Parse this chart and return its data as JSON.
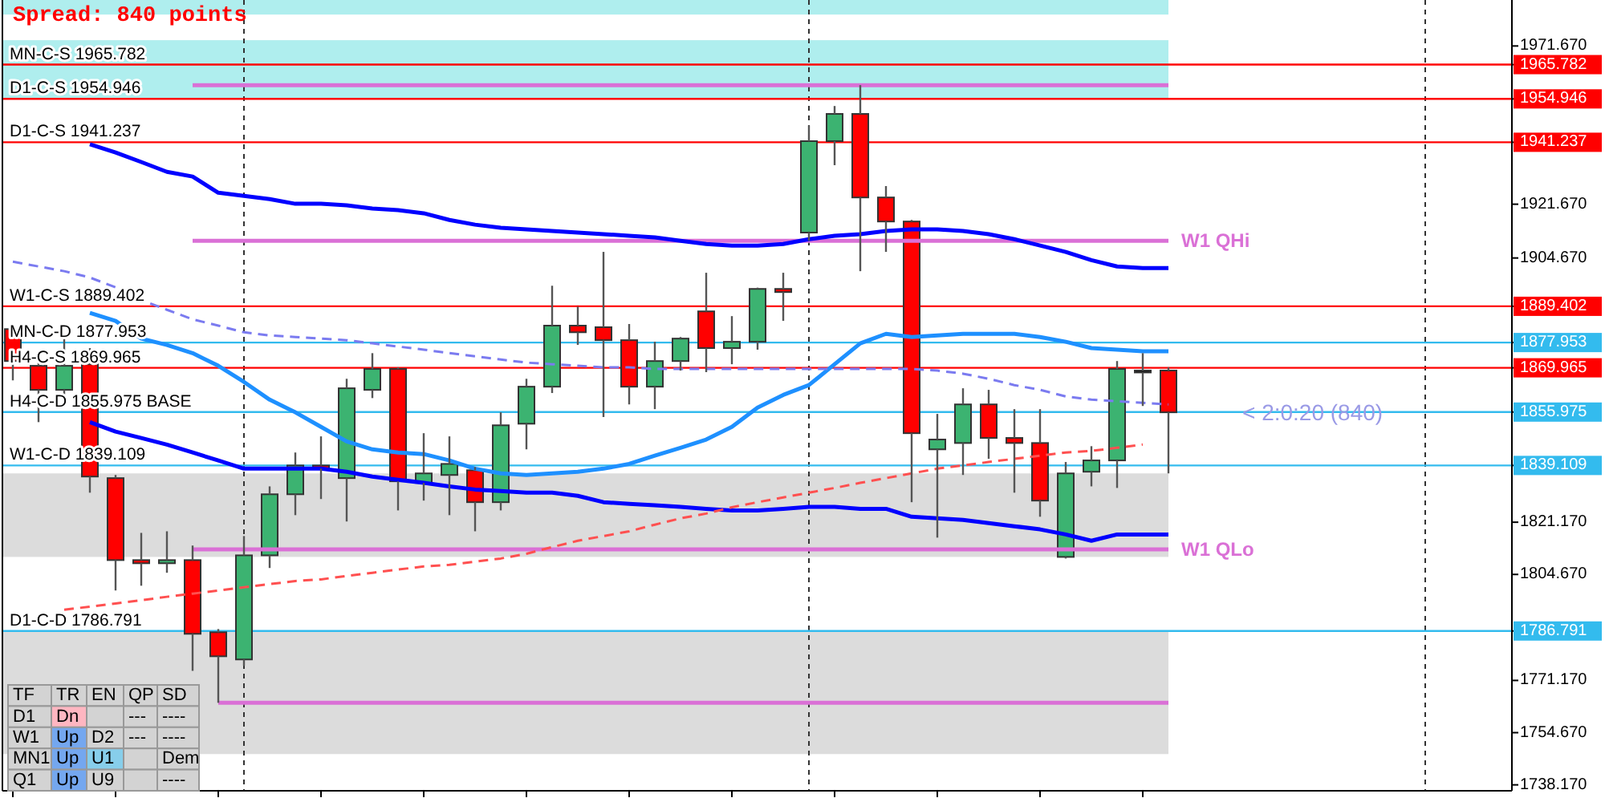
{
  "chart_data": [
    {
      "type": "candlestick",
      "categories": [
        null,
        null,
        null,
        null,
        null,
        null,
        null,
        null,
        null,
        null,
        null,
        null,
        null,
        null,
        null,
        null,
        null,
        null,
        null,
        null,
        null,
        null,
        null,
        null,
        null,
        null,
        null,
        null,
        null,
        null,
        null,
        null,
        null,
        null,
        null,
        null,
        null,
        null,
        null,
        null,
        null,
        null,
        null,
        null,
        null,
        null
      ],
      "ohlc": [
        [
          1882.2,
          1883.5,
          1866.0,
          1872.1
        ],
        [
          1870.6,
          1872.0,
          1852.8,
          1863.0
        ],
        [
          1863.0,
          1879.2,
          1861.5,
          1870.6
        ],
        [
          1871.1,
          1876.2,
          1830.5,
          1835.6
        ],
        [
          1835.1,
          1836.1,
          1799.6,
          1809.2
        ],
        [
          1809.2,
          1817.8,
          1801.1,
          1808.2
        ],
        [
          1808.2,
          1818.3,
          1805.2,
          1809.2
        ],
        [
          1809.2,
          1813.8,
          1774.2,
          1785.9
        ],
        [
          1786.4,
          1787.4,
          1764.1,
          1778.8
        ],
        [
          1777.8,
          1816.8,
          1775.8,
          1810.7
        ],
        [
          1810.7,
          1832.5,
          1806.7,
          1830.0
        ],
        [
          1830.0,
          1843.2,
          1823.4,
          1839.1
        ],
        [
          1839.1,
          1848.3,
          1828.5,
          1838.1
        ],
        [
          1835.1,
          1866.5,
          1821.4,
          1863.5
        ],
        [
          1863.0,
          1874.6,
          1860.4,
          1869.6
        ],
        [
          1869.6,
          1870.1,
          1824.9,
          1834.1
        ],
        [
          1833.6,
          1849.3,
          1828.0,
          1836.6
        ],
        [
          1836.1,
          1848.3,
          1823.4,
          1839.6
        ],
        [
          1837.6,
          1838.6,
          1818.3,
          1827.5
        ],
        [
          1827.5,
          1855.9,
          1824.9,
          1851.8
        ],
        [
          1852.3,
          1866.5,
          1844.2,
          1864.0
        ],
        [
          1864.0,
          1895.9,
          1862.0,
          1883.3
        ],
        [
          1883.3,
          1889.3,
          1877.2,
          1881.2
        ],
        [
          1882.8,
          1906.6,
          1854.4,
          1878.7
        ],
        [
          1878.7,
          1883.8,
          1858.4,
          1864.0
        ],
        [
          1864.0,
          1878.2,
          1856.9,
          1872.1
        ],
        [
          1872.1,
          1879.7,
          1869.1,
          1879.2
        ],
        [
          1887.8,
          1900.0,
          1868.6,
          1876.2
        ],
        [
          1876.2,
          1886.3,
          1871.1,
          1878.2
        ],
        [
          1878.2,
          1895.3,
          1875.7,
          1894.9
        ],
        [
          1894.9,
          1900.0,
          1884.8,
          1893.9
        ],
        [
          1912.7,
          1946.6,
          1910.1,
          1941.6
        ],
        [
          1941.6,
          1952.7,
          1934.0,
          1950.2
        ],
        [
          1950.2,
          1959.3,
          1900.5,
          1923.8
        ],
        [
          1923.8,
          1927.4,
          1906.6,
          1916.2
        ],
        [
          1916.2,
          1916.7,
          1827.5,
          1849.3
        ],
        [
          1844.2,
          1855.4,
          1816.3,
          1847.3
        ],
        [
          1846.2,
          1863.5,
          1836.1,
          1858.4
        ],
        [
          1858.4,
          1863.0,
          1841.2,
          1847.8
        ],
        [
          1847.8,
          1856.9,
          1830.5,
          1846.2
        ],
        [
          1846.2,
          1856.9,
          1822.9,
          1828.0
        ],
        [
          1810.2,
          1840.2,
          1809.7,
          1836.6
        ],
        [
          1837.1,
          1845.2,
          1832.5,
          1840.7
        ],
        [
          1840.7,
          1872.1,
          1832.0,
          1869.6
        ],
        [
          1869.1,
          1874.6,
          1857.9,
          1869.1
        ],
        [
          1869.1,
          1870.1,
          1836.6,
          1855.9
        ]
      ],
      "colors": [
        "#ff0000",
        "#ff0000",
        "#3cb371",
        "#ff0000",
        "#ff0000",
        "#ff0000",
        "#3cb371",
        "#ff0000",
        "#ff0000",
        "#3cb371",
        "#3cb371",
        "#3cb371",
        "#ff0000",
        "#3cb371",
        "#3cb371",
        "#ff0000",
        "#3cb371",
        "#3cb371",
        "#ff0000",
        "#3cb371",
        "#3cb371",
        "#3cb371",
        "#ff0000",
        "#ff0000",
        "#ff0000",
        "#3cb371",
        "#3cb371",
        "#ff0000",
        "#3cb371",
        "#3cb371",
        "#ff0000",
        "#3cb371",
        "#3cb371",
        "#ff0000",
        "#ff0000",
        "#ff0000",
        "#3cb371",
        "#3cb371",
        "#ff0000",
        "#ff0000",
        "#ff0000",
        "#3cb371",
        "#3cb371",
        "#3cb371",
        "#000000",
        "#ff0000"
      ],
      "series": [
        {
          "type": "line",
          "color": "#da70d6",
          "values": [
            null,
            null,
            null,
            null,
            null,
            null,
            null,
            1959.3,
            1959.3,
            1959.3,
            1959.3,
            1959.3,
            1959.3,
            1959.3,
            1959.3,
            1959.3,
            1959.3,
            1959.3,
            1959.3,
            1959.3,
            1959.3,
            1959.3,
            1959.3,
            1959.3,
            1959.3,
            1959.3,
            1959.3,
            1959.3,
            1959.3,
            1959.3,
            1959.3,
            1959.3,
            1959.3,
            1959.3,
            1959.3,
            1959.3,
            1959.3,
            1959.3,
            1959.3,
            1959.3,
            1959.3,
            1959.3,
            1959.3,
            1959.3,
            1959.3,
            1959.3
          ]
        },
        {
          "type": "line",
          "name": "W1 QHi",
          "color": "#da70d6",
          "values": [
            null,
            null,
            null,
            null,
            null,
            null,
            null,
            1910.1,
            1910.1,
            1910.1,
            1910.1,
            1910.1,
            1910.1,
            1910.1,
            1910.1,
            1910.1,
            1910.1,
            1910.1,
            1910.1,
            1910.1,
            1910.1,
            1910.1,
            1910.1,
            1910.1,
            1910.1,
            1910.1,
            1910.1,
            1910.1,
            1910.1,
            1910.1,
            1910.1,
            1910.1,
            1910.1,
            1910.1,
            1910.1,
            1910.1,
            1910.1,
            1910.1,
            1910.1,
            1910.1,
            1910.1,
            1910.1,
            1910.1,
            1910.1,
            1910.1,
            1910.1
          ]
        },
        {
          "type": "line",
          "name": "W1 QLo",
          "color": "#da70d6",
          "values": [
            null,
            null,
            null,
            null,
            null,
            null,
            null,
            1812.6,
            1812.6,
            1812.6,
            1812.6,
            1812.6,
            1812.6,
            1812.6,
            1812.6,
            1812.6,
            1812.6,
            1812.6,
            1812.6,
            1812.6,
            1812.6,
            1812.6,
            1812.6,
            1812.6,
            1812.6,
            1812.6,
            1812.6,
            1812.6,
            1812.6,
            1812.6,
            1812.6,
            1812.6,
            1812.6,
            1812.6,
            1812.6,
            1812.6,
            1812.6,
            1812.6,
            1812.6,
            1812.6,
            1812.6,
            1812.6,
            1812.6,
            1812.6,
            1812.6,
            1812.6
          ]
        },
        {
          "type": "line",
          "color": "#da70d6",
          "values": [
            null,
            null,
            null,
            null,
            null,
            null,
            null,
            null,
            1764.1,
            1764.1,
            1764.1,
            1764.1,
            1764.1,
            1764.1,
            1764.1,
            1764.1,
            1764.1,
            1764.1,
            1764.1,
            1764.1,
            1764.1,
            1764.1,
            1764.1,
            1764.1,
            1764.1,
            1764.1,
            1764.1,
            1764.1,
            1764.1,
            1764.1,
            1764.1,
            1764.1,
            1764.1,
            1764.1,
            1764.1,
            1764.1,
            1764.1,
            1764.1,
            1764.1,
            1764.1,
            1764.1,
            1764.1,
            1764.1,
            1764.1,
            1764.1,
            1764.1
          ]
        },
        {
          "type": "line",
          "color": "#0000ff",
          "values": [
            null,
            null,
            null,
            1940.6,
            1938.0,
            1935.0,
            1931.9,
            1930.4,
            1925.3,
            1924.3,
            1923.3,
            1921.8,
            1921.8,
            1921.3,
            1920.3,
            1919.8,
            1918.8,
            1916.7,
            1915.2,
            1914.2,
            1913.7,
            1913.2,
            1912.7,
            1912.2,
            1911.7,
            1911.2,
            1910.1,
            1909.1,
            1908.6,
            1908.6,
            1909.1,
            1910.6,
            1911.7,
            1912.2,
            1913.2,
            1913.7,
            1913.7,
            1913.2,
            1912.2,
            1910.6,
            1908.6,
            1906.6,
            1904.0,
            1902.0,
            1901.5,
            1901.5
          ]
        },
        {
          "type": "line",
          "color": "#0000ff",
          "values": [
            null,
            null,
            null,
            1852.8,
            1849.8,
            1847.8,
            1845.7,
            1843.2,
            1840.7,
            1838.1,
            1838.1,
            1838.1,
            1838.1,
            1837.1,
            1835.6,
            1834.6,
            1833.6,
            1832.5,
            1831.5,
            1831.0,
            1830.5,
            1830.5,
            1829.5,
            1827.5,
            1827.0,
            1826.5,
            1826.0,
            1825.4,
            1824.9,
            1824.9,
            1825.4,
            1826.0,
            1826.0,
            1825.4,
            1825.4,
            1822.9,
            1822.4,
            1821.9,
            1820.9,
            1819.9,
            1818.9,
            1817.3,
            1815.3,
            1817.3,
            1817.3,
            1817.3
          ]
        },
        {
          "type": "line",
          "color": "#1e90ff",
          "values": [
            null,
            null,
            null,
            1887.3,
            1884.8,
            1879.2,
            1877.2,
            1874.6,
            1870.6,
            1865.5,
            1859.9,
            1855.9,
            1851.3,
            1846.7,
            1844.2,
            1843.2,
            1842.7,
            1840.7,
            1838.1,
            1836.6,
            1836.1,
            1836.6,
            1837.1,
            1838.1,
            1839.6,
            1842.2,
            1844.7,
            1847.3,
            1851.3,
            1857.4,
            1861.4,
            1864.5,
            1871.1,
            1877.7,
            1880.7,
            1879.7,
            1880.2,
            1880.7,
            1880.7,
            1880.7,
            1879.7,
            1878.2,
            1876.2,
            1875.7,
            1875.2,
            1875.2
          ]
        },
        {
          "type": "line",
          "color": "#7b7bf0",
          "line_style": "dashed",
          "values": [
            1903.5,
            1902.0,
            1900.5,
            1898.5,
            1895.4,
            1891.4,
            1888.3,
            1885.3,
            1883.3,
            1881.2,
            1880.2,
            1879.7,
            1879.2,
            1878.7,
            1877.7,
            1876.7,
            1875.7,
            1874.6,
            1873.6,
            1872.6,
            1871.6,
            1871.1,
            1870.6,
            1870.1,
            1870.1,
            1869.6,
            1869.6,
            1869.6,
            1869.6,
            1869.6,
            1869.6,
            1869.6,
            1869.6,
            1869.6,
            1869.6,
            1869.6,
            1869.1,
            1868.1,
            1866.5,
            1864.5,
            1863.0,
            1860.9,
            1859.9,
            1859.4,
            1858.9,
            1858.4
          ]
        },
        {
          "type": "line",
          "color": "#ff5050",
          "line_style": "dashed",
          "values": [
            null,
            null,
            1793.5,
            1794.5,
            1795.5,
            1796.5,
            1797.6,
            1798.6,
            1799.6,
            1800.6,
            1801.6,
            1802.6,
            1803.1,
            1804.2,
            1805.2,
            1806.2,
            1807.2,
            1807.7,
            1808.7,
            1809.7,
            1811.2,
            1813.3,
            1815.3,
            1816.8,
            1818.3,
            1820.4,
            1822.4,
            1823.9,
            1825.9,
            1827.5,
            1829.0,
            1830.5,
            1832.0,
            1833.6,
            1835.1,
            1836.6,
            1838.1,
            1839.1,
            1840.2,
            1841.2,
            1842.2,
            1843.2,
            1843.7,
            1844.7,
            1845.7,
            null
          ]
        }
      ],
      "ylim": [
        1736.3,
        1986.2
      ],
      "yticks": [
        {
          "value": 1738.17,
          "label": "1738.170"
        },
        {
          "value": 1754.67,
          "label": "1754.670"
        },
        {
          "value": 1771.17,
          "label": "1771.170"
        },
        1786.791,
        {
          "value": 1804.67,
          "label": "1804.670"
        },
        {
          "value": 1821.17,
          "label": "1821.170"
        },
        1839.109,
        1855.975,
        1869.965,
        1877.953,
        1889.402,
        {
          "value": 1904.67,
          "label": "1904.670"
        },
        {
          "value": 1921.67,
          "label": "1921.670"
        },
        1941.237,
        1954.946,
        1965.782,
        {
          "value": 1971.67,
          "label": "1971.670"
        }
      ],
      "ref_lines": [
        {
          "axis": "y",
          "value": 1965.782,
          "label": "MN-C-S 1965.782",
          "color": "#ff0000"
        },
        {
          "axis": "y",
          "value": 1954.946,
          "label": "D1-C-S 1954.946",
          "color": "#ff0000"
        },
        {
          "axis": "y",
          "value": 1941.237,
          "label": "D1-C-S 1941.237",
          "color": "#ff0000"
        },
        {
          "axis": "y",
          "value": 1889.402,
          "label": "W1-C-S 1889.402",
          "color": "#ff0000"
        },
        {
          "axis": "y",
          "value": 1877.953,
          "label": "MN-C-D 1877.953",
          "color": "#33bbee"
        },
        {
          "axis": "y",
          "value": 1869.965,
          "label": "H4-C-S 1869.965",
          "color": "#ff0000"
        },
        {
          "axis": "y",
          "value": 1855.975,
          "label": "H4-C-D 1855.975 BASE",
          "color": "#33bbee"
        },
        {
          "axis": "y",
          "value": 1839.109,
          "label": "W1-C-D 1839.109",
          "color": "#33bbee"
        },
        {
          "axis": "y",
          "value": 1786.791,
          "label": "D1-C-D 1786.791",
          "color": "#33bbee"
        }
      ],
      "bands": [
        {
          "axis": "y",
          "from": 1981.6,
          "to": 1986.2,
          "color": "#afeeee"
        },
        {
          "axis": "y",
          "from": 1954.9,
          "to": 1973.5,
          "color": "#afeeee"
        },
        {
          "axis": "y",
          "from": 1810.2,
          "to": 1836.6,
          "color": "#dcdcdc"
        },
        {
          "axis": "y",
          "from": 1747.9,
          "to": 1786.8,
          "color": "#dcdcdc"
        }
      ],
      "annotations": [
        "Spread: 840 points",
        {
          "text": "< 2:0:20 (840)",
          "y": 1855.975
        }
      ]
    },
    {
      "type": "other",
      "ylabel": "TF",
      "categories": [
        "TR",
        "EN",
        "QP",
        "SD"
      ],
      "y_categories": [
        "D1",
        "W1",
        "MN1",
        "Q1"
      ],
      "cell_labels": [
        [
          "Dn",
          null,
          "---",
          "----"
        ],
        [
          "Up",
          "D2",
          "---",
          "----"
        ],
        [
          "Up",
          "U1",
          null,
          "Dem"
        ],
        [
          "Up",
          "U9",
          null,
          "----"
        ]
      ],
      "colors": [
        [
          "#ffb6c1",
          "#d3d3d3",
          "#d3d3d3",
          "#d3d3d3"
        ],
        [
          "#74a7ef",
          "#d3d3d3",
          "#d3d3d3",
          "#d3d3d3"
        ],
        [
          "#74a7ef",
          "#87ceeb",
          "#d3d3d3",
          "#d3d3d3"
        ],
        [
          "#74a7ef",
          "#d3d3d3",
          "#d3d3d3",
          "#d3d3d3"
        ]
      ]
    }
  ]
}
